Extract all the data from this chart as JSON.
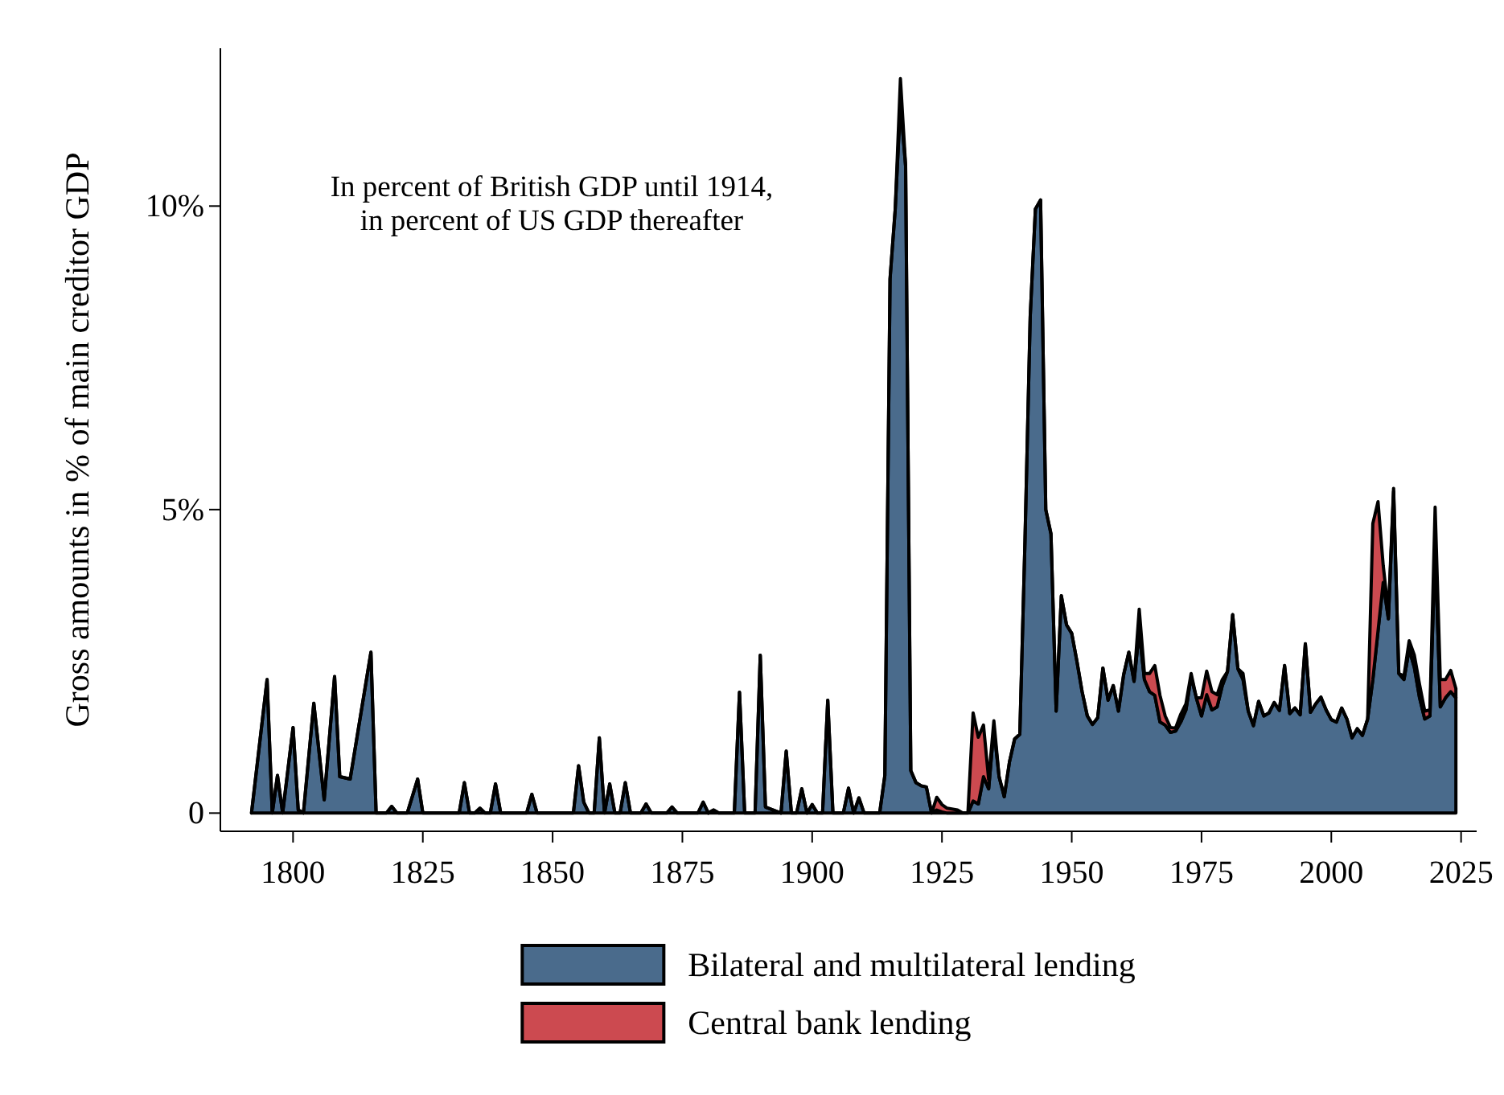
{
  "chart_data": {
    "type": "area",
    "stacked": true,
    "ylabel": "Gross amounts in % of main creditor GDP",
    "annotations": [
      "In percent of British GDP until 1914,\nin percent of US GDP thereafter"
    ],
    "x": [
      1792,
      1795,
      1796,
      1797,
      1798,
      1800,
      1801,
      1802,
      1804,
      1806,
      1808,
      1809,
      1811,
      1815,
      1816,
      1818,
      1819,
      1820,
      1822,
      1824,
      1825,
      1832,
      1833,
      1834,
      1835,
      1836,
      1837,
      1838,
      1839,
      1840,
      1845,
      1846,
      1847,
      1854,
      1855,
      1856,
      1857,
      1858,
      1859,
      1860,
      1861,
      1862,
      1863,
      1864,
      1865,
      1867,
      1868,
      1869,
      1872,
      1873,
      1874,
      1878,
      1879,
      1880,
      1881,
      1882,
      1885,
      1886,
      1887,
      1889,
      1890,
      1891,
      1894,
      1895,
      1896,
      1897,
      1898,
      1899,
      1900,
      1901,
      1902,
      1903,
      1904,
      1906,
      1907,
      1908,
      1909,
      1910,
      1913,
      1914,
      1915,
      1916,
      1917,
      1918,
      1919,
      1920,
      1921,
      1922,
      1923,
      1924,
      1925,
      1926,
      1928,
      1929,
      1930,
      1931,
      1932,
      1933,
      1934,
      1935,
      1936,
      1937,
      1938,
      1939,
      1940,
      1941,
      1942,
      1943,
      1944,
      1945,
      1946,
      1947,
      1948,
      1949,
      1950,
      1951,
      1952,
      1953,
      1954,
      1955,
      1956,
      1957,
      1958,
      1959,
      1960,
      1961,
      1962,
      1963,
      1964,
      1965,
      1966,
      1967,
      1968,
      1969,
      1970,
      1971,
      1972,
      1973,
      1974,
      1975,
      1976,
      1977,
      1978,
      1979,
      1980,
      1981,
      1982,
      1983,
      1984,
      1985,
      1986,
      1987,
      1988,
      1989,
      1990,
      1991,
      1992,
      1993,
      1994,
      1995,
      1996,
      1997,
      1998,
      1999,
      2000,
      2001,
      2002,
      2003,
      2004,
      2005,
      2006,
      2007,
      2008,
      2009,
      2010,
      2011,
      2012,
      2013,
      2014,
      2015,
      2016,
      2017,
      2018,
      2019,
      2020,
      2021,
      2022,
      2023,
      2024
    ],
    "series": [
      {
        "name": "Bilateral and multilateral lending",
        "color": "#4a6b8c",
        "values": [
          0,
          2.2,
          0,
          0.62,
          0,
          1.41,
          0.05,
          0,
          1.81,
          0.22,
          2.25,
          0.6,
          0.56,
          2.65,
          0,
          0,
          0.11,
          0,
          0,
          0.56,
          0,
          0,
          0.5,
          0,
          0,
          0.08,
          0,
          0,
          0.48,
          0,
          0,
          0.31,
          0,
          0,
          0.78,
          0.18,
          0,
          0,
          1.24,
          0,
          0.48,
          0,
          0,
          0.5,
          0,
          0,
          0.15,
          0,
          0,
          0.1,
          0,
          0,
          0.18,
          0,
          0.05,
          0,
          0,
          1.99,
          0,
          0,
          2.6,
          0.1,
          0,
          1.02,
          0,
          0,
          0.4,
          0,
          0.14,
          0,
          0,
          1.86,
          0,
          0,
          0.41,
          0,
          0.25,
          0,
          0,
          0.62,
          8.8,
          9.95,
          11.7,
          10.66,
          0.7,
          0.5,
          0.45,
          0.43,
          0,
          0.05,
          0.02,
          0,
          0,
          0,
          0,
          0.2,
          0.15,
          0.6,
          0.4,
          1.4,
          0.6,
          0.27,
          0.84,
          1.22,
          1.3,
          4.5,
          8.18,
          9.95,
          10.1,
          5,
          4.6,
          1.68,
          3.58,
          3.1,
          2.96,
          2.5,
          2,
          1.6,
          1.46,
          1.57,
          2.39,
          1.86,
          2.1,
          1.68,
          2.28,
          2.65,
          2.17,
          3,
          2.2,
          2,
          1.94,
          1.5,
          1.45,
          1.33,
          1.35,
          1.5,
          1.7,
          2.25,
          1.9,
          1.6,
          1.95,
          1.7,
          1.75,
          2.1,
          2.33,
          3.27,
          2.38,
          2.2,
          1.68,
          1.44,
          1.84,
          1.6,
          1.65,
          1.82,
          1.69,
          2.43,
          1.64,
          1.73,
          1.62,
          2.79,
          1.66,
          1.8,
          1.91,
          1.7,
          1.54,
          1.5,
          1.73,
          1.55,
          1.24,
          1.39,
          1.28,
          1.55,
          2.2,
          3,
          3.8,
          3.2,
          5.3,
          2.3,
          2.2,
          2.7,
          2.4,
          1.9,
          1.55,
          1.6,
          4.4,
          1.75,
          1.9,
          2,
          1.9
        ]
      },
      {
        "name": "Central bank lending",
        "color": "#cc4a50",
        "values": [
          0,
          0,
          0,
          0,
          0,
          0,
          0,
          0,
          0,
          0,
          0,
          0,
          0,
          0,
          0,
          0,
          0,
          0,
          0,
          0,
          0,
          0,
          0,
          0,
          0,
          0,
          0,
          0,
          0,
          0,
          0,
          0,
          0,
          0,
          0,
          0,
          0,
          0,
          0,
          0,
          0,
          0,
          0,
          0,
          0,
          0,
          0,
          0,
          0,
          0,
          0,
          0,
          0,
          0,
          0,
          0,
          0,
          0,
          0,
          0,
          0,
          0,
          0,
          0,
          0,
          0,
          0,
          0,
          0,
          0,
          0,
          0,
          0,
          0,
          0,
          0,
          0,
          0,
          0,
          0,
          0,
          0,
          0.4,
          0,
          0,
          0,
          0,
          0,
          0,
          0.21,
          0.12,
          0.08,
          0.05,
          0,
          0,
          1.45,
          1.1,
          0.85,
          0.15,
          0.12,
          0,
          0,
          0,
          0,
          0,
          0,
          0,
          0,
          0,
          0,
          0,
          0,
          0,
          0,
          0,
          0,
          0,
          0,
          0,
          0,
          0,
          0,
          0,
          0,
          0,
          0,
          0,
          0.36,
          0.1,
          0.3,
          0.49,
          0.44,
          0.15,
          0.08,
          0.05,
          0.13,
          0.1,
          0.05,
          0,
          0.3,
          0.39,
          0.3,
          0.2,
          0.1,
          0,
          0,
          0,
          0.1,
          0,
          0,
          0,
          0,
          0,
          0,
          0,
          0,
          0,
          0,
          0,
          0,
          0,
          0,
          0,
          0,
          0,
          0,
          0,
          0,
          0,
          0,
          0,
          0,
          2.57,
          2.13,
          0.28,
          0.1,
          0.05,
          0,
          0.06,
          0.14,
          0.2,
          0.22,
          0.13,
          0.1,
          0.64,
          0.45,
          0.3,
          0.35,
          0.15
        ]
      }
    ],
    "xlim": [
      1786,
      2028
    ],
    "xticks": [
      1800,
      1825,
      1850,
      1875,
      1900,
      1925,
      1950,
      1975,
      2000,
      2025
    ],
    "ylim": [
      -0.3,
      12.6
    ],
    "yticks": [
      {
        "value": 0,
        "label": "0"
      },
      {
        "value": 5,
        "label": "5%"
      },
      {
        "value": 10,
        "label": "10%"
      }
    ],
    "grid": false,
    "legend": "bottom"
  }
}
